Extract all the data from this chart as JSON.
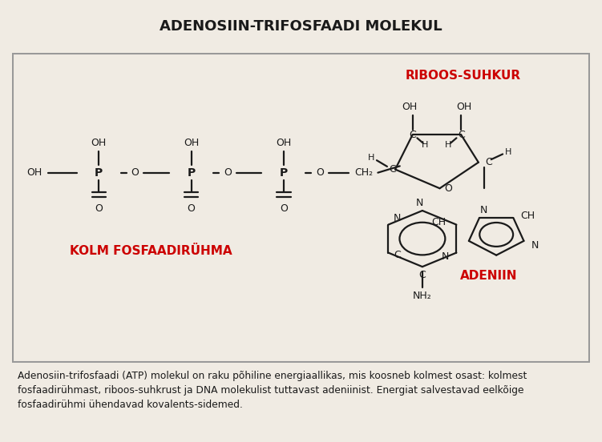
{
  "title": "ADENOSIIN-TRIFOSFAADI MOLEKUL",
  "bg_outer": "#f0ebe3",
  "bg_inner": "#f0c0a8",
  "border_color": "#999999",
  "text_color": "#1a1a1a",
  "label_red": "#cc0000",
  "line_color": "#1a1a1a",
  "label_kolm": "KOLM FOSFAADIRÜHMA",
  "label_riboos": "RIBOOS-SUHKUR",
  "label_adeniin": "ADENIIN",
  "footer_text": "Adenosiin-trifosfaadi (ATP) molekul on raku põhiline energiaallikas, mis koosneb kolmest osast: kolmest fosfaadirühmast, riboos-suhkrust ja DNA molekulist tuttavast adeniinist. Energiat salvestavad eelkõige fosfaadirühmi ühendavad kovalents-sidemed."
}
